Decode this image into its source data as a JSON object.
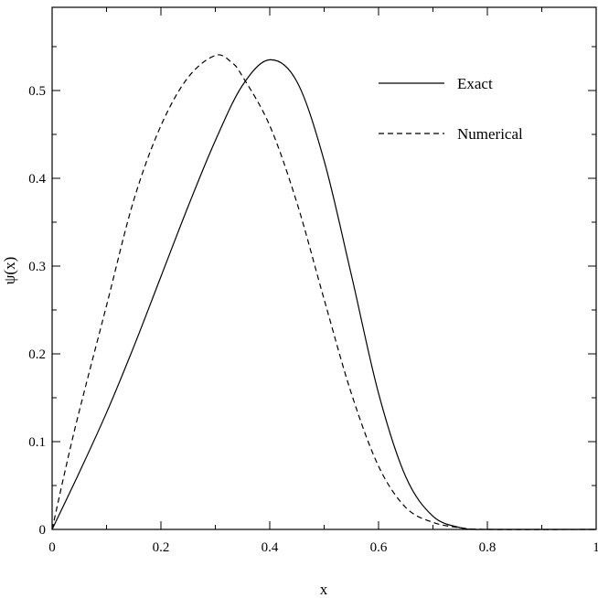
{
  "chart_data": {
    "type": "line",
    "title": "",
    "xlabel": "x",
    "ylabel": "ψ(x)",
    "xlim": [
      0,
      1
    ],
    "ylim": [
      0,
      0.5
    ],
    "xticks": [
      0,
      0.2,
      0.4,
      0.6,
      0.8,
      1
    ],
    "xtick_labels": [
      "0",
      "0.2",
      "0.4",
      "0.6",
      "0.8",
      "1"
    ],
    "yticks": [
      0,
      0.1,
      0.2,
      0.3,
      0.4,
      0.5
    ],
    "ytick_labels": [
      "0",
      "0.1",
      "0.2",
      "0.3",
      "0.4",
      "0.5"
    ],
    "grid": false,
    "legend_position": "top-right",
    "series": [
      {
        "name": "Exact",
        "style": "solid",
        "color": "#000000",
        "x": [
          0,
          0.05,
          0.1,
          0.15,
          0.2,
          0.25,
          0.3,
          0.35,
          0.4,
          0.45,
          0.5,
          0.55,
          0.6,
          0.65,
          0.7,
          0.75,
          0.78,
          0.8,
          1.0
        ],
        "y": [
          0,
          0.065,
          0.133,
          0.208,
          0.288,
          0.368,
          0.443,
          0.506,
          0.535,
          0.51,
          0.42,
          0.29,
          0.155,
          0.06,
          0.015,
          0.002,
          0.0,
          0.0,
          0.0
        ]
      },
      {
        "name": "Numerical",
        "style": "dashed",
        "color": "#000000",
        "x": [
          0,
          0.025,
          0.05,
          0.1,
          0.15,
          0.2,
          0.25,
          0.3,
          0.33,
          0.35,
          0.4,
          0.45,
          0.5,
          0.55,
          0.6,
          0.65,
          0.7,
          0.75,
          0.8,
          1.0
        ],
        "y": [
          0,
          0.07,
          0.135,
          0.255,
          0.375,
          0.46,
          0.515,
          0.54,
          0.532,
          0.516,
          0.46,
          0.372,
          0.262,
          0.155,
          0.072,
          0.025,
          0.008,
          0.002,
          0.0,
          0.0
        ]
      }
    ]
  }
}
